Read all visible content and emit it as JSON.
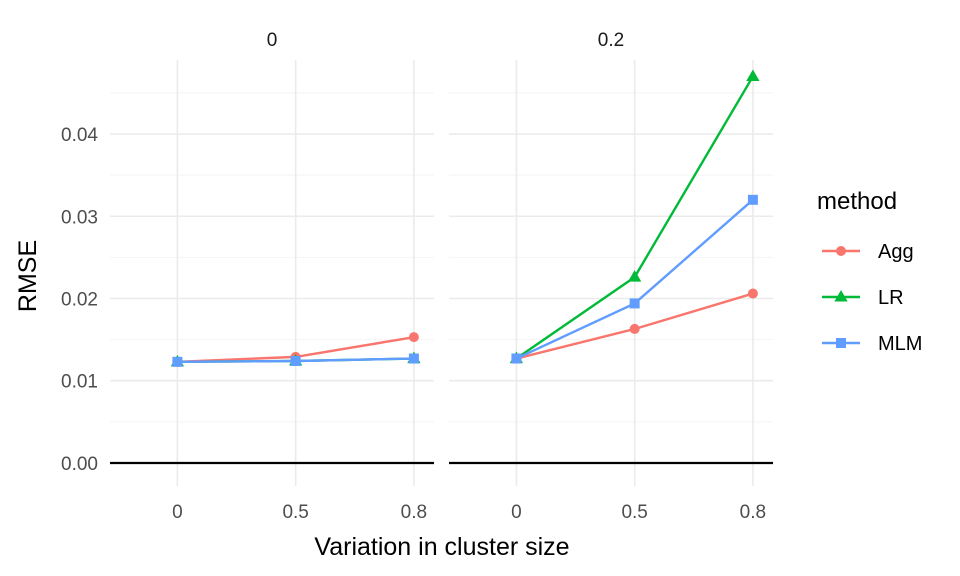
{
  "chart_data": {
    "type": "line",
    "xlabel": "Variation in cluster size",
    "ylabel": "RMSE",
    "ylim": [
      -0.0028,
      0.049
    ],
    "yticks": [
      0.0,
      0.01,
      0.02,
      0.03,
      0.04
    ],
    "ytick_labels": [
      "0.00",
      "0.01",
      "0.02",
      "0.03",
      "0.04"
    ],
    "x_categories": [
      "0",
      "0.5",
      "0.8"
    ],
    "x_values": [
      0,
      0.5,
      0.8
    ],
    "grid": true,
    "legend": {
      "title": "method",
      "placement": "right"
    },
    "facets": [
      {
        "label": "0",
        "series": [
          {
            "name": "Agg",
            "values": [
              0.0123,
              0.0129,
              0.0153
            ]
          },
          {
            "name": "LR",
            "values": [
              0.0123,
              0.0124,
              0.0127
            ]
          },
          {
            "name": "MLM",
            "values": [
              0.0123,
              0.0124,
              0.0127
            ]
          }
        ]
      },
      {
        "label": "0.2",
        "series": [
          {
            "name": "Agg",
            "values": [
              0.0127,
              0.0163,
              0.0206
            ]
          },
          {
            "name": "LR",
            "values": [
              0.0127,
              0.0226,
              0.047
            ]
          },
          {
            "name": "MLM",
            "values": [
              0.0127,
              0.0194,
              0.032
            ]
          }
        ]
      }
    ],
    "series_styles": [
      {
        "name": "Agg",
        "color": "#F8766D",
        "marker": "circle"
      },
      {
        "name": "LR",
        "color": "#00BA38",
        "marker": "triangle"
      },
      {
        "name": "MLM",
        "color": "#619CFF",
        "marker": "square"
      }
    ]
  }
}
